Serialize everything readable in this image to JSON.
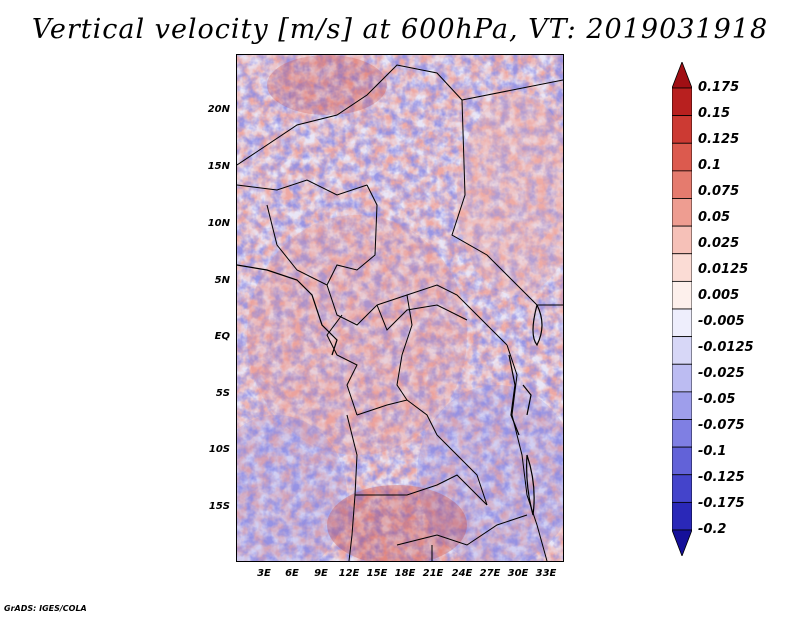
{
  "title": "Vertical velocity [m/s] at 600hPa, VT: 2019031918",
  "footer": "GrADS: IGES/COLA",
  "map": {
    "lat_labels": [
      "20N",
      "15N",
      "10N",
      "5N",
      "EQ",
      "5S",
      "10S",
      "15S"
    ],
    "lon_labels": [
      "3E",
      "6E",
      "9E",
      "12E",
      "15E",
      "18E",
      "21E",
      "24E",
      "27E",
      "30E",
      "33E"
    ]
  },
  "colorbar": {
    "labels": [
      "0.175",
      "0.15",
      "0.125",
      "0.1",
      "0.075",
      "0.05",
      "0.025",
      "0.0125",
      "0.005",
      "-0.005",
      "-0.0125",
      "-0.025",
      "-0.05",
      "-0.075",
      "-0.1",
      "-0.125",
      "-0.175",
      "-0.2"
    ],
    "colors": [
      "#a00f14",
      "#b8201f",
      "#cc3a33",
      "#dc5a4e",
      "#e57b6e",
      "#ee9d91",
      "#f6c1b8",
      "#fbdcd5",
      "#fdf0ec",
      "#eeeefc",
      "#d7d7f7",
      "#bcbcf2",
      "#9e9eeb",
      "#7f7fe3",
      "#6262d8",
      "#4444cb",
      "#2a28b8",
      "#15109a"
    ]
  }
}
